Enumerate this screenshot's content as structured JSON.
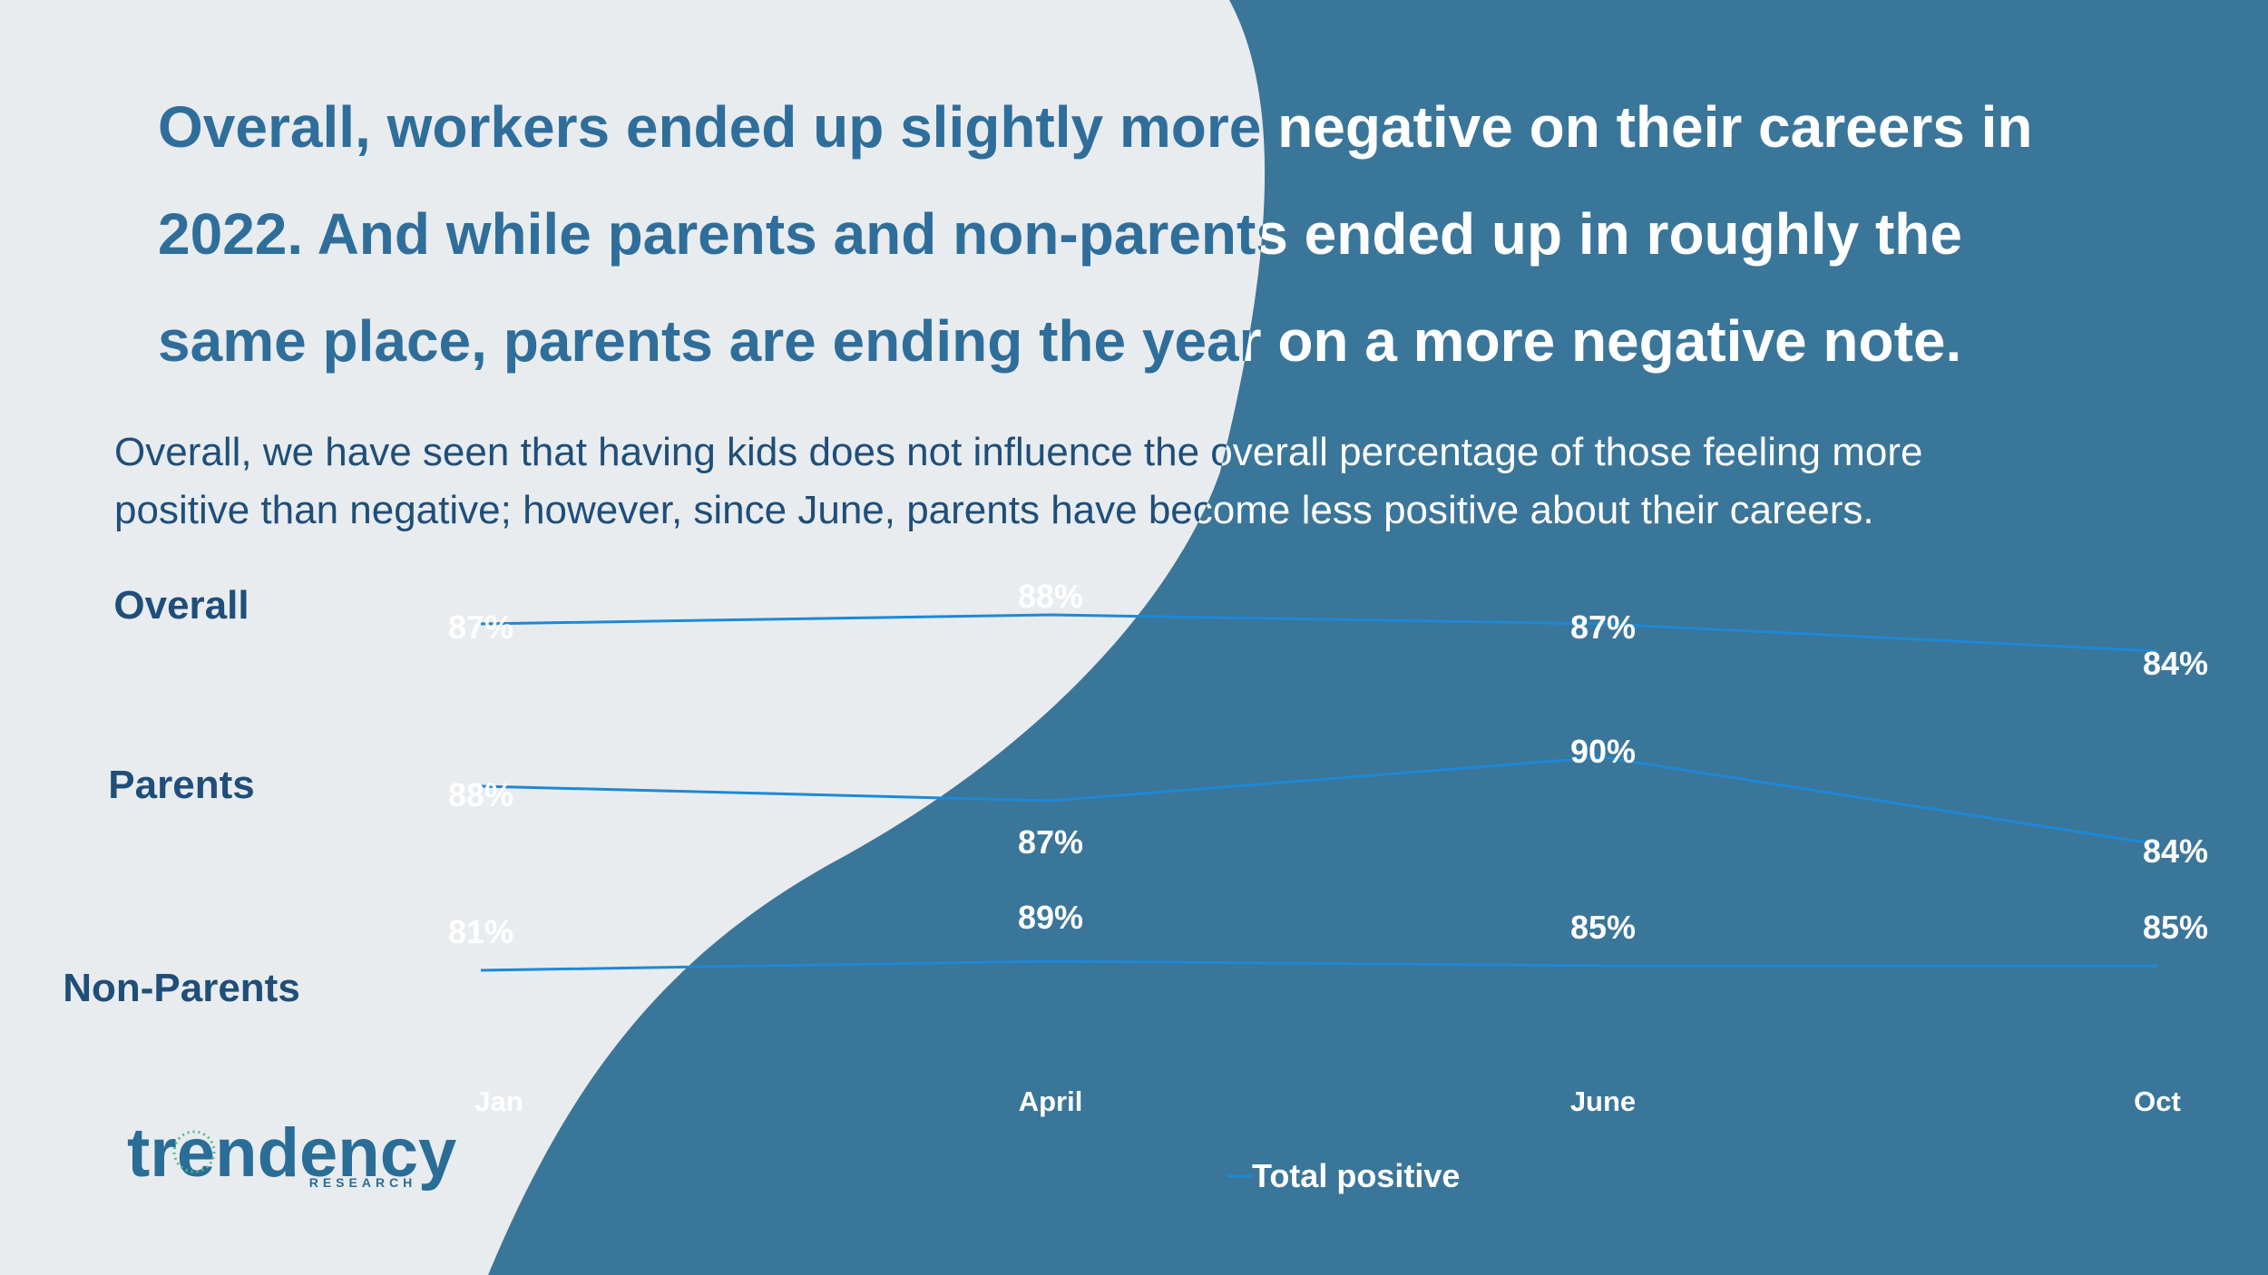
{
  "headline": {
    "line1": "Overall, workers ended up slightly more negative on their careers in",
    "line2": "2022. And while parents and non-parents ended up in roughly the",
    "line3": "same place, parents are ending the year on a more negative note."
  },
  "subtitle": {
    "line1": "Overall, we have seen that having kids does not influence the overall percentage of those feeling more",
    "line2": "positive than negative; however, since June, parents have become less positive about their careers."
  },
  "legend_label": "Total positive",
  "logo": {
    "word": "trendency",
    "tag": "RESEARCH"
  },
  "colors": {
    "light_bg": "#e8ecef",
    "dark_bg": "#3a7699",
    "title_dark": "#2f6e9a",
    "line": "#1e88d6",
    "row_label": "#1f4e79"
  },
  "chart_data": [
    {
      "type": "line",
      "row_label": "Overall",
      "categories": [
        "Jan",
        "April",
        "June",
        "Oct"
      ],
      "series": [
        {
          "name": "Total positive",
          "values": [
            87,
            88,
            87,
            84
          ],
          "labels": [
            "87%",
            "88%",
            "87%",
            "84%"
          ]
        }
      ]
    },
    {
      "type": "line",
      "row_label": "Parents",
      "categories": [
        "Jan",
        "April",
        "June",
        "Oct"
      ],
      "series": [
        {
          "name": "Total positive",
          "values": [
            88,
            87,
            90,
            84
          ],
          "labels": [
            "88%",
            "87%",
            "90%",
            "84%"
          ]
        }
      ]
    },
    {
      "type": "line",
      "row_label": "Non-Parents",
      "categories": [
        "Jan",
        "April",
        "June",
        "Oct"
      ],
      "series": [
        {
          "name": "Total positive",
          "values": [
            81,
            89,
            85,
            85
          ],
          "labels": [
            "81%",
            "89%",
            "85%",
            "85%"
          ]
        }
      ]
    }
  ]
}
